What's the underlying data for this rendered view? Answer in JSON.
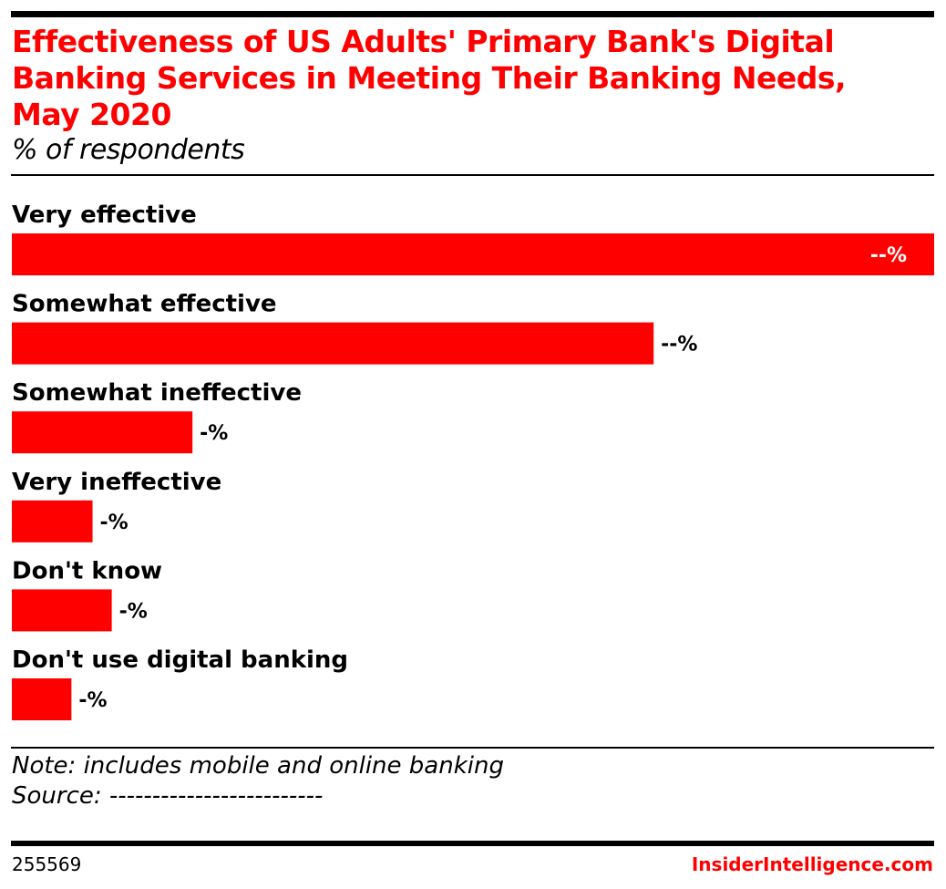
{
  "colors": {
    "bar": "#ff0000",
    "title": "#ff0000",
    "brand": "#ff0000",
    "text": "#000000"
  },
  "header": {
    "title": "Effectiveness of US Adults' Primary Bank's Digital Banking Services in Meeting Their Banking Needs, May 2020",
    "subtitle": "% of respondents"
  },
  "chart_data": {
    "type": "bar",
    "orientation": "horizontal",
    "categories": [
      "Very effective",
      "Somewhat effective",
      "Somewhat ineffective",
      "Very ineffective",
      "Don't know",
      "Don't use digital banking"
    ],
    "values": [
      48,
      33.4,
      9.4,
      4.2,
      5.2,
      3.1
    ],
    "value_labels": [
      "--%",
      "--%",
      "-%",
      "-%",
      "-%",
      "-%"
    ],
    "xlim": [
      0,
      48
    ],
    "grid": false,
    "legend": "none"
  },
  "footer": {
    "note": "Note: includes mobile and online banking",
    "source": "Source: -------------------------",
    "chart_id": "255569",
    "brand": "InsiderIntelligence.com"
  }
}
